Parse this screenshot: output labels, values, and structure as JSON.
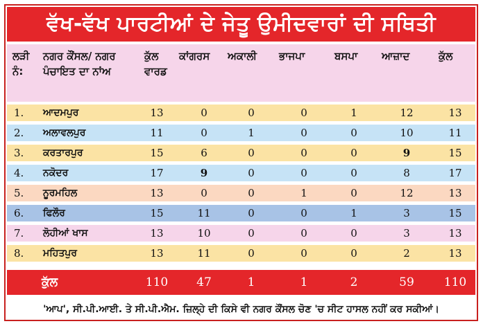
{
  "title": "ਵੱਖ-ਵੱਖ ਪਾਰਟੀਆਂ ਦੇ ਜੇਤੂ ਉਮੀਦਵਾਰਾਂ ਦੀ ਸਥਿਤੀ",
  "columns": {
    "sno": "ਲੜੀ ਨੰ:",
    "council": "ਨਗਰ ਕੌਂਸਲ/ ਨਗਰ ਪੰਚਾਇਤ ਦਾ ਨਾਂਅ",
    "wards": "ਕੁੱਲ ਵਾਰਡ",
    "congress": "ਕਾਂਗਰਸ",
    "akali": "ਅਕਾਲੀ",
    "bjp": "ਭਾਜਪਾ",
    "bsp": "ਬਸਪਾ",
    "independent": "ਆਜ਼ਾਦ",
    "total": "ਕੁੱਲ"
  },
  "colors": {
    "title_bg": "#e4262a",
    "header_bg": "#f6d5ea",
    "row_yellow": "#fbe3a4",
    "row_blue": "#c6e3f6",
    "row_peach": "#fbd8c1",
    "row_steel": "#a8c3e6",
    "row_pink": "#f6d5ea"
  },
  "rows": [
    {
      "sno": "1.",
      "name": "ਆਦਮਪੁਰ",
      "wards": "13",
      "congress": "0",
      "akali": "0",
      "bjp": "0",
      "bsp": "1",
      "independent": "12",
      "total": "13"
    },
    {
      "sno": "2.",
      "name": "ਅਲਾਵਲਪੁਰ",
      "wards": "11",
      "congress": "0",
      "akali": "1",
      "bjp": "0",
      "bsp": "0",
      "independent": "10",
      "total": "11"
    },
    {
      "sno": "3.",
      "name": "ਕਰਤਾਰਪੁਰ",
      "wards": "15",
      "congress": "6",
      "akali": "0",
      "bjp": "0",
      "bsp": "0",
      "independent": "9",
      "total": "15"
    },
    {
      "sno": "4.",
      "name": "ਨਕੋਦਰ",
      "wards": "17",
      "congress": "9",
      "akali": "0",
      "bjp": "0",
      "bsp": "0",
      "independent": "8",
      "total": "17"
    },
    {
      "sno": "5.",
      "name": "ਨੂਰਮਹਿਲ",
      "wards": "13",
      "congress": "0",
      "akali": "0",
      "bjp": "1",
      "bsp": "0",
      "independent": "12",
      "total": "13"
    },
    {
      "sno": "6.",
      "name": "ਫਿਲੌਰ",
      "wards": "15",
      "congress": "11",
      "akali": "0",
      "bjp": "0",
      "bsp": "1",
      "independent": "3",
      "total": "15"
    },
    {
      "sno": "7.",
      "name": "ਲੋਹੀਆਂ ਖਾਸ",
      "wards": "13",
      "congress": "10",
      "akali": "0",
      "bjp": "0",
      "bsp": "0",
      "independent": "3",
      "total": "13"
    },
    {
      "sno": "8.",
      "name": "ਮਹਿਤਪੁਰ",
      "wards": "13",
      "congress": "11",
      "akali": "0",
      "bjp": "0",
      "bsp": "0",
      "independent": "2",
      "total": "13"
    }
  ],
  "totals": {
    "label": "ਕੁੱਲ",
    "wards": "110",
    "congress": "47",
    "akali": "1",
    "bjp": "1",
    "bsp": "2",
    "independent": "59",
    "total": "110"
  },
  "footnote": "'ਆਪ', ਸੀ.ਪੀ.ਆਈ. ਤੇ ਸੀ.ਪੀ.ਐਮ. ਜ਼ਿਲ੍ਹੇ ਦੀ ਕਿਸੇ ਵੀ ਨਗਰ ਕੌਂਸਲ ਚੋਣ 'ਚ ਸੀਟ ਹਾਸਲ ਨਹੀਂ ਕਰ ਸਕੀਆਂ।"
}
